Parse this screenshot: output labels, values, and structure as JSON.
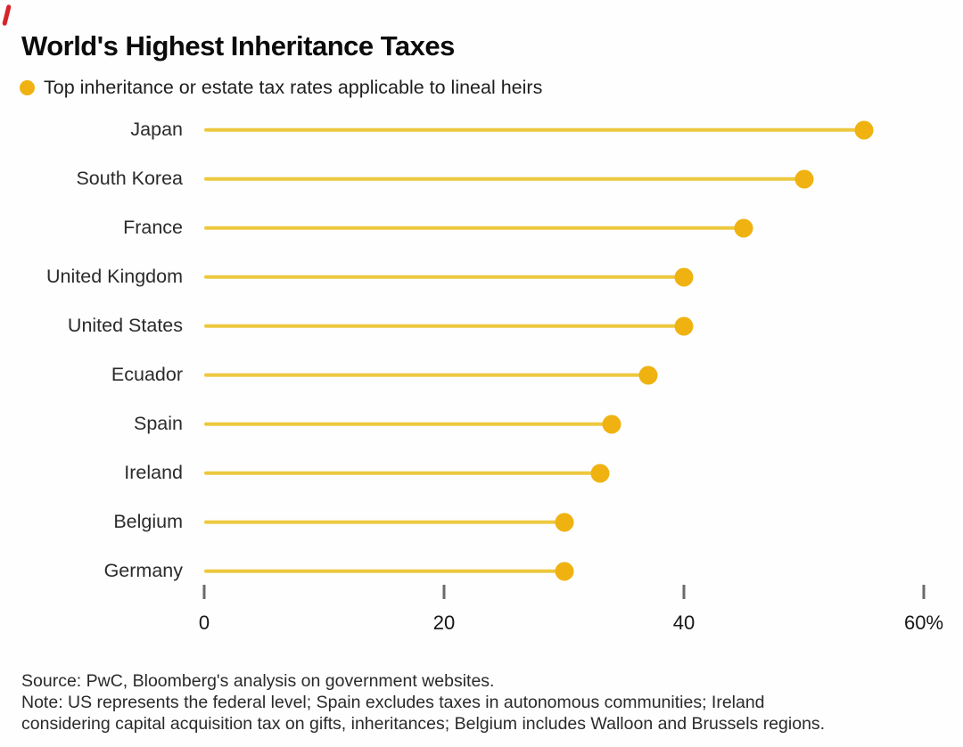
{
  "chart_data": {
    "type": "bar",
    "variant": "horizontal-lollipop",
    "title": "World's Highest Inheritance Taxes",
    "legend": "Top inheritance or estate tax rates applicable to lineal heirs",
    "categories": [
      "Japan",
      "South Korea",
      "France",
      "United Kingdom",
      "United States",
      "Ecuador",
      "Spain",
      "Ireland",
      "Belgium",
      "Germany"
    ],
    "values": [
      55,
      50,
      45,
      40,
      40,
      37,
      34,
      33,
      30,
      30
    ],
    "xlabel": "",
    "ylabel": "",
    "xlim": [
      0,
      60
    ],
    "x_ticks": [
      {
        "value": 0,
        "label": "0"
      },
      {
        "value": 20,
        "label": "20"
      },
      {
        "value": 40,
        "label": "40"
      },
      {
        "value": 60,
        "label": "60%"
      }
    ],
    "grid": false,
    "legend_position": "top-left"
  },
  "footer": {
    "source": "Source: PwC, Bloomberg's analysis on government websites.",
    "note_line1": "Note: US represents the federal level; Spain excludes taxes in autonomous communities; Ireland",
    "note_line2": "considering capital acquisition tax on gifts, inheritances; Belgium includes Walloon and Brussels regions."
  },
  "colors": {
    "dot_yellow": "#efb211",
    "stem_yellow": "#edc83e",
    "red_mark": "#d8232a",
    "tick_gray": "#6b6b6b"
  }
}
